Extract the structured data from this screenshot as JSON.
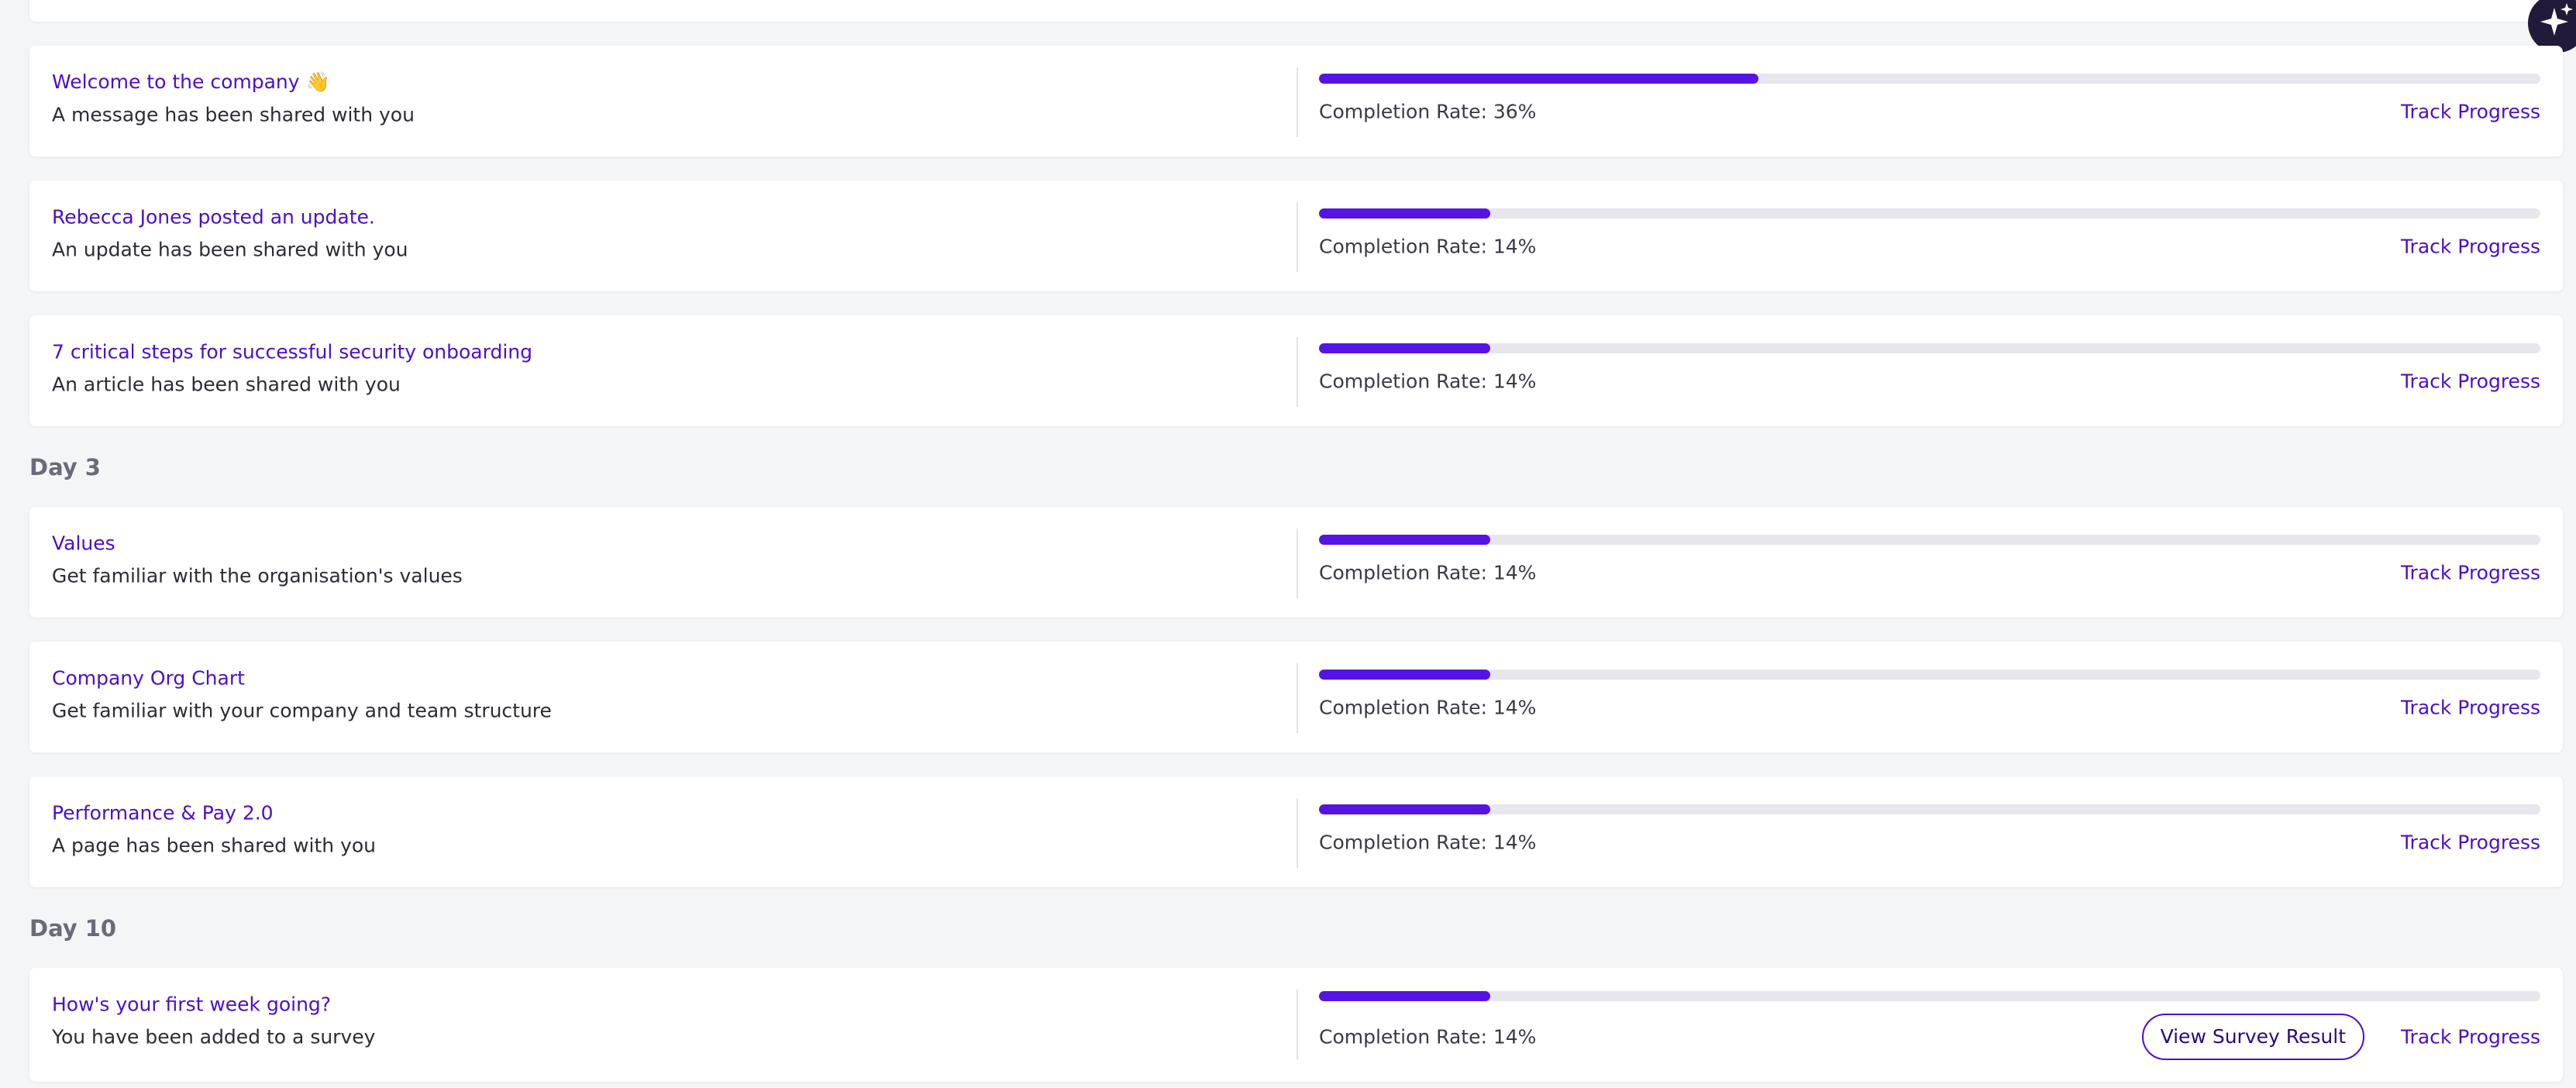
{
  "sections": [
    {
      "items": [
        {
          "title": "Welcome to the company 👋",
          "subtitle": "A message has been shared with you",
          "completion_rate": 36,
          "completion_label": "Completion Rate: 36%",
          "action": "Track Progress"
        },
        {
          "title": "Rebecca Jones posted an update.",
          "subtitle": "An update has been shared with you",
          "completion_rate": 14,
          "completion_label": "Completion Rate: 14%",
          "action": "Track Progress"
        },
        {
          "title": "7 critical steps for successful security onboarding",
          "subtitle": "An article has been shared with you",
          "completion_rate": 14,
          "completion_label": "Completion Rate: 14%",
          "action": "Track Progress"
        }
      ]
    },
    {
      "heading": "Day 3",
      "items": [
        {
          "title": "Values",
          "subtitle": "Get familiar with the organisation's values",
          "completion_rate": 14,
          "completion_label": "Completion Rate: 14%",
          "action": "Track Progress"
        },
        {
          "title": "Company Org Chart",
          "subtitle": "Get familiar with your company and team structure",
          "completion_rate": 14,
          "completion_label": "Completion Rate: 14%",
          "action": "Track Progress"
        },
        {
          "title": "Performance & Pay 2.0",
          "subtitle": "A page has been shared with you",
          "completion_rate": 14,
          "completion_label": "Completion Rate: 14%",
          "action": "Track Progress"
        }
      ]
    },
    {
      "heading": "Day 10",
      "items": [
        {
          "title": "How's your first week going?",
          "subtitle": "You have been added to a survey",
          "completion_rate": 14,
          "completion_label": "Completion Rate: 14%",
          "button": "View Survey Result",
          "action": "Track Progress"
        }
      ]
    }
  ]
}
